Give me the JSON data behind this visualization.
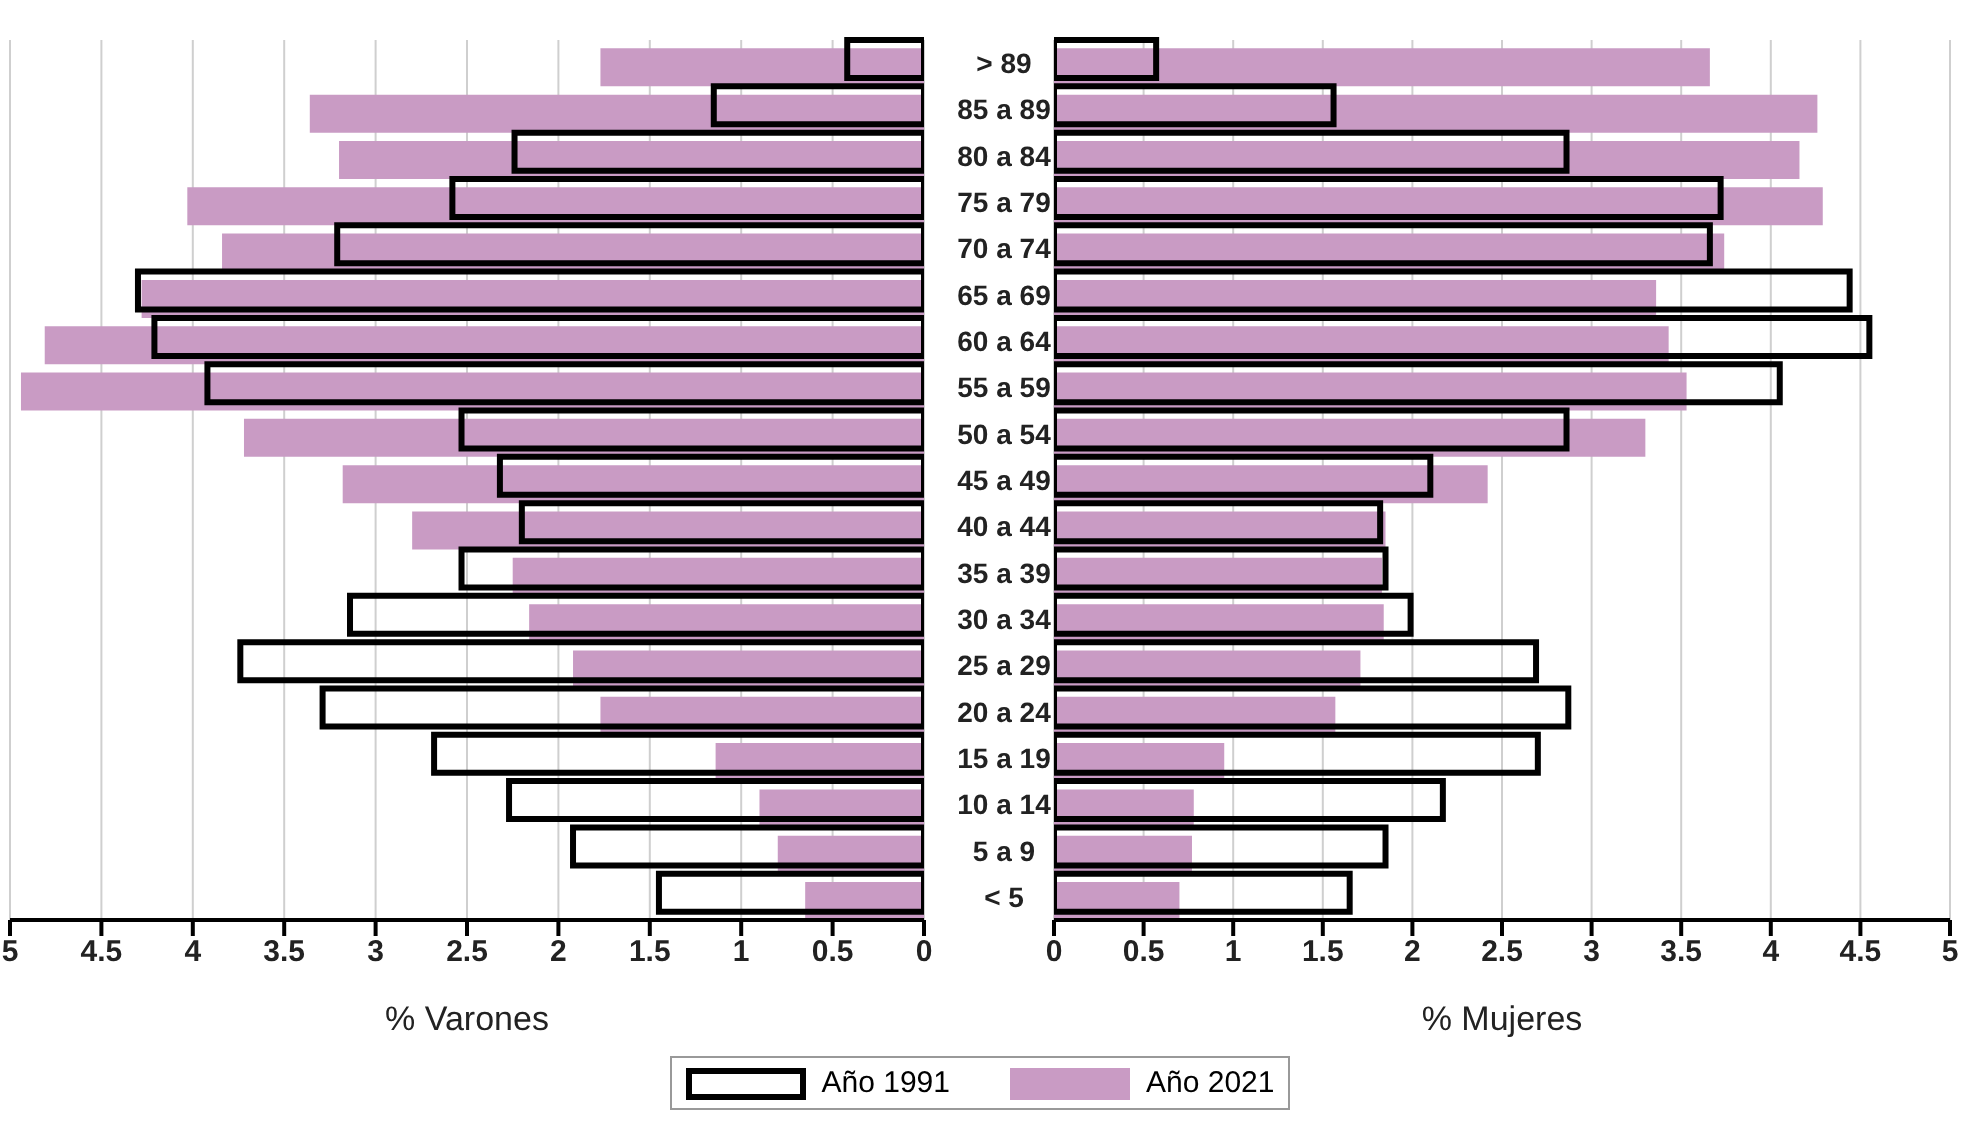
{
  "chart_data": [
    {
      "type": "bar",
      "orientation": "horizontal",
      "xlabel": "% Varones",
      "categories": [
        "> 89",
        "85 a 89",
        "80 a 84",
        "75 a 79",
        "70 a 74",
        "65 a 69",
        "60 a 64",
        "55 a 59",
        "50 a 54",
        "45 a 49",
        "40 a 44",
        "35 a 39",
        "30 a 34",
        "25 a 29",
        "20 a 24",
        "15 a 19",
        "10 a 14",
        "5 a 9",
        "< 5"
      ],
      "series": [
        {
          "name": "Año 1991",
          "color": "#000000",
          "values": [
            0.42,
            1.15,
            2.24,
            2.58,
            3.21,
            4.3,
            4.21,
            3.92,
            2.53,
            2.32,
            2.2,
            2.53,
            3.14,
            3.74,
            3.29,
            2.68,
            2.27,
            1.92,
            1.45
          ]
        },
        {
          "name": "Año 2021",
          "color": "#c99bc4",
          "values": [
            1.77,
            3.36,
            3.2,
            4.03,
            3.84,
            4.28,
            4.81,
            4.94,
            3.72,
            3.18,
            2.8,
            2.25,
            2.16,
            1.92,
            1.77,
            1.14,
            0.9,
            0.8,
            0.65
          ]
        }
      ],
      "xlim": [
        5,
        0
      ],
      "xticks": [
        5,
        4.5,
        4,
        3.5,
        3,
        2.5,
        2,
        1.5,
        1,
        0.5,
        0
      ],
      "grid": "x",
      "legend": "bottom"
    },
    {
      "type": "bar",
      "orientation": "horizontal",
      "xlabel": "% Mujeres",
      "categories": [
        null,
        null,
        null,
        null,
        null,
        null,
        null,
        null,
        null,
        null,
        null,
        null,
        null,
        null,
        null,
        null,
        null,
        null,
        null
      ],
      "series": [
        {
          "color": "#000000",
          "values": [
            0.57,
            1.56,
            2.86,
            3.72,
            3.66,
            4.44,
            4.55,
            4.05,
            2.86,
            2.1,
            1.82,
            1.85,
            1.99,
            2.69,
            2.87,
            2.7,
            2.17,
            1.85,
            1.65
          ]
        },
        {
          "color": "#c99bc4",
          "values": [
            3.66,
            4.26,
            4.16,
            4.29,
            3.74,
            3.36,
            3.43,
            3.53,
            3.3,
            2.42,
            1.85,
            1.83,
            1.84,
            1.71,
            1.57,
            0.95,
            0.78,
            0.77,
            0.7
          ]
        }
      ],
      "xlim": [
        0,
        5
      ],
      "xticks": [
        0,
        0.5,
        1,
        1.5,
        2,
        2.5,
        3,
        3.5,
        4,
        4.5,
        5
      ],
      "grid": "x",
      "tick_labels": "x"
    }
  ]
}
